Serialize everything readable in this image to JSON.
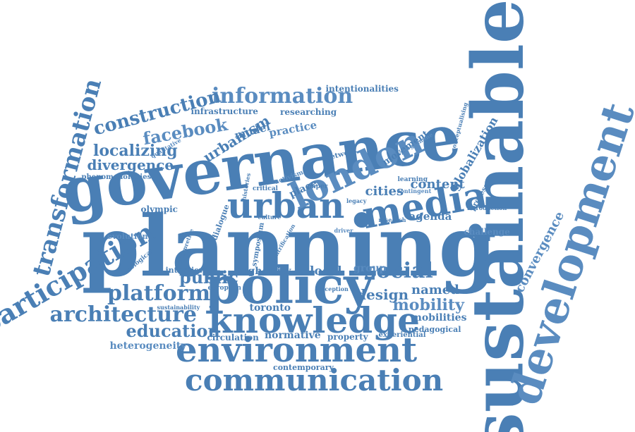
{
  "palette": {
    "word": "#4a7fb5",
    "word_alt": "#5a8cc0",
    "background": "#ffffff"
  },
  "words": [
    "planning",
    "governance",
    "sustainable",
    "development",
    "policy",
    "knowledge",
    "environment",
    "urban",
    "london",
    "media",
    "communication",
    "participation",
    "transformation",
    "information",
    "construction",
    "architecture",
    "platform",
    "education",
    "facebook",
    "urbanism",
    "localizing",
    "divergence",
    "social",
    "mobility",
    "design",
    "public",
    "content",
    "cities",
    "convergence",
    "local",
    "named",
    "agenda",
    "model",
    "practice",
    "globalization",
    "infrastructure",
    "researching",
    "intentionalities",
    "heterogeneity",
    "circulation",
    "normative",
    "property",
    "contemporary",
    "challenge",
    "mobilities",
    "pedagogical",
    "experiential",
    "olympic",
    "evolution",
    "phenomenologies",
    "toronto",
    "higher",
    "city",
    "group",
    "interview",
    "european",
    "sustainability",
    "ecological",
    "qualitative",
    "processes",
    "movement",
    "introduction",
    "network",
    "activism",
    "critical",
    "place",
    "paper",
    "learning",
    "programme",
    "conceptualising",
    "dialogue",
    "histories",
    "research",
    "contingent",
    "symposium",
    "culture",
    "legacy",
    "exception",
    "driver",
    "gentrification",
    "interpretive"
  ]
}
